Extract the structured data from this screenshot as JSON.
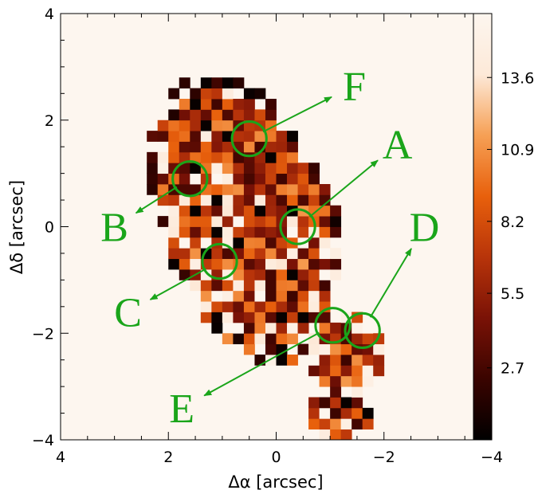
{
  "chart_data": {
    "type": "heatmap",
    "title": "",
    "xlabel": "Δα [arcsec]",
    "ylabel": "Δδ [arcsec]",
    "xlim": [
      4,
      -4
    ],
    "ylim": [
      -4,
      4
    ],
    "x_ticks": [
      4,
      2,
      0,
      -2,
      -4
    ],
    "x_tick_labels": [
      "4",
      "2",
      "0",
      "−2",
      "−4"
    ],
    "y_ticks": [
      -4,
      -2,
      0,
      2,
      4
    ],
    "y_tick_labels": [
      "−4",
      "−2",
      "0",
      "2",
      "4"
    ],
    "colorbar": {
      "range": [
        0,
        16
      ],
      "ticks": [
        2.7,
        5.5,
        8.2,
        10.9,
        13.6
      ],
      "tick_labels": [
        "2.7",
        "5.5",
        "8.2",
        "10.9",
        "13.6"
      ],
      "colormap": [
        "#000000",
        "#3a0400",
        "#7a1206",
        "#b8340a",
        "#e8600c",
        "#f6a055",
        "#fde9d8",
        "#fdf6ef"
      ]
    },
    "regions": [
      {
        "label": "A",
        "x": -0.4,
        "y": 0.0,
        "radius": 0.32,
        "label_x": -2.25,
        "label_y": 1.55
      },
      {
        "label": "B",
        "x": 1.6,
        "y": 0.9,
        "radius": 0.32,
        "label_x": 3.0,
        "label_y": 0.0
      },
      {
        "label": "C",
        "x": 1.05,
        "y": -0.65,
        "radius": 0.32,
        "label_x": 2.75,
        "label_y": -1.6
      },
      {
        "label": "D",
        "x": -1.6,
        "y": -1.95,
        "radius": 0.32,
        "label_x": -2.75,
        "label_y": 0.0
      },
      {
        "label": "E",
        "x": -1.05,
        "y": -1.85,
        "radius": 0.32,
        "label_x": 1.75,
        "label_y": -3.4
      },
      {
        "label": "F",
        "x": 0.5,
        "y": 1.65,
        "radius": 0.32,
        "label_x": -1.45,
        "label_y": 2.65
      }
    ],
    "grid": false
  },
  "colors": {
    "annotation": "#1aa51a",
    "axis": "#000000"
  }
}
